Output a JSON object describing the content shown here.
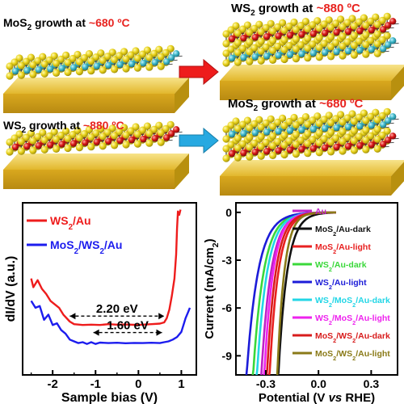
{
  "schematic": {
    "row1_left": {
      "prefix": "MoS",
      "sub": "2",
      "suffix": " growth at ",
      "temp": "~680 ºC"
    },
    "row1_right": {
      "prefix": "WS",
      "sub": "2",
      "suffix": " growth at ",
      "temp": "~880 ºC"
    },
    "row2_left": {
      "prefix": "WS",
      "sub": "2",
      "suffix": " growth at ",
      "temp": "~880 ºC"
    },
    "row2_right": {
      "prefix": "MoS",
      "sub": "2",
      "suffix": " growth at ",
      "temp": "~680 ºC"
    },
    "colors": {
      "arrow_red": "#ee1c1c",
      "arrow_blue": "#27a9e1",
      "substrate": "#e7c23a",
      "sulfur": "#e6d21a",
      "mo": "#3fb8c9",
      "w": "#d01414"
    }
  },
  "chart_data": [
    {
      "type": "line",
      "xlabel": "Sample bias (V)",
      "ylabel": "dI/dV (a.u.)",
      "xlim": [
        -2.7,
        1.35
      ],
      "xticks": [
        -2,
        -1,
        0,
        1
      ],
      "series": [
        {
          "name": "WS2/Au",
          "name_parts": [
            "WS",
            "2",
            "/Au"
          ],
          "color": "#ee1c1c",
          "x": [
            -2.5,
            -2.45,
            -2.35,
            -2.25,
            -2.15,
            -2.05,
            -1.95,
            -1.85,
            -1.75,
            -1.6,
            -1.5,
            -1.3,
            -1.1,
            -0.9,
            -0.7,
            -0.5,
            -0.3,
            -0.1,
            0.1,
            0.3,
            0.5,
            0.6,
            0.66,
            0.72,
            0.78,
            0.84,
            0.88,
            0.9,
            0.92,
            0.95,
            0.98
          ],
          "y": [
            5.6,
            5.1,
            5.5,
            5.0,
            4.7,
            4.3,
            4.1,
            3.9,
            3.5,
            3.1,
            2.95,
            2.9,
            2.92,
            2.9,
            2.95,
            2.92,
            2.93,
            2.91,
            2.92,
            2.95,
            2.98,
            3.05,
            3.3,
            3.8,
            4.6,
            5.6,
            7.0,
            8.5,
            9.5,
            9.3,
            9.6
          ]
        },
        {
          "name": "MoS2/WS2/Au",
          "name_parts": [
            "MoS",
            "2",
            "/WS",
            "2",
            "/Au"
          ],
          "color": "#1c1cee",
          "x": [
            -2.5,
            -2.4,
            -2.3,
            -2.2,
            -2.1,
            -2.0,
            -1.9,
            -1.8,
            -1.7,
            -1.6,
            -1.5,
            -1.4,
            -1.3,
            -1.2,
            -1.1,
            -1.0,
            -0.9,
            -0.7,
            -0.5,
            -0.3,
            -0.1,
            0.1,
            0.3,
            0.5,
            0.6,
            0.7,
            0.8,
            0.9,
            1.0,
            1.05,
            1.1,
            1.15,
            1.2
          ],
          "y": [
            4.3,
            3.9,
            4.0,
            3.2,
            3.5,
            2.9,
            3.0,
            2.6,
            2.4,
            2.05,
            1.95,
            1.85,
            1.9,
            1.8,
            1.9,
            1.8,
            1.88,
            1.85,
            1.87,
            1.84,
            1.86,
            1.85,
            1.87,
            1.85,
            1.9,
            1.95,
            2.05,
            2.2,
            2.5,
            2.9,
            3.3,
            3.6,
            3.9
          ]
        }
      ],
      "annotations": [
        {
          "text": "2.20 eV",
          "x1": -1.6,
          "x2": 0.6
        },
        {
          "text": "1.60 eV",
          "x1": -1.05,
          "x2": 0.55
        }
      ]
    },
    {
      "type": "line",
      "xlabel_parts": [
        "Potential (V ",
        "vs",
        " RHE)"
      ],
      "ylabel_parts": [
        "Current  (mA/cm",
        "2",
        ")"
      ],
      "xlim": [
        -0.47,
        0.45
      ],
      "ylim": [
        -10.2,
        0.6
      ],
      "xticks": [
        -0.3,
        0.0,
        0.3
      ],
      "xtick_labels": [
        "-0.3",
        "0.0",
        "0.3"
      ],
      "yticks": [
        0,
        -3,
        -6,
        -9
      ],
      "ytick_labels": [
        "0",
        "-3",
        "-6",
        "-9"
      ],
      "series": [
        {
          "name": "Au",
          "name_parts": [
            "Au"
          ],
          "color": "#c020c8",
          "onset": -0.14,
          "tau": 0.055
        },
        {
          "name": "MoS2/Au-dark",
          "name_parts": [
            "MoS",
            "2",
            "/Au-dark"
          ],
          "color": "#111111",
          "onset": -0.06,
          "tau": 0.05
        },
        {
          "name": "MoS2/Au-light",
          "name_parts": [
            "MoS",
            "2",
            "/Au-light"
          ],
          "color": "#e82020",
          "onset": -0.11,
          "tau": 0.05
        },
        {
          "name": "WS2/Au-dark",
          "name_parts": [
            "WS",
            "2",
            "/Au-dark"
          ],
          "color": "#3ad83a",
          "onset": -0.17,
          "tau": 0.06
        },
        {
          "name": "WS2/Au-light",
          "name_parts": [
            "WS",
            "2",
            "/Au-light"
          ],
          "color": "#1c1cd8",
          "onset": -0.19,
          "tau": 0.065
        },
        {
          "name": "WS2/MoS2/Au-dark",
          "name_parts": [
            "WS",
            "2",
            "/MoS",
            "2",
            "/Au-dark"
          ],
          "color": "#22d6e6",
          "onset": -0.155,
          "tau": 0.058
        },
        {
          "name": "WS2/MoS2/Au-light",
          "name_parts": [
            "WS",
            "2",
            "/MoS",
            "2",
            "/Au-light"
          ],
          "color": "#ee22ee",
          "onset": -0.14,
          "tau": 0.05
        },
        {
          "name": "MoS2/WS2/Au-dark",
          "name_parts": [
            "MoS",
            "2",
            "/WS",
            "2",
            "/Au-dark"
          ],
          "color": "#d81c1c",
          "onset": -0.125,
          "tau": 0.05
        },
        {
          "name": "MoS2/WS2/Au-light",
          "name_parts": [
            "MoS",
            "2",
            "/WS",
            "2",
            "/Au-light"
          ],
          "color": "#8a7a18",
          "onset": -0.1,
          "tau": 0.04
        }
      ]
    }
  ]
}
